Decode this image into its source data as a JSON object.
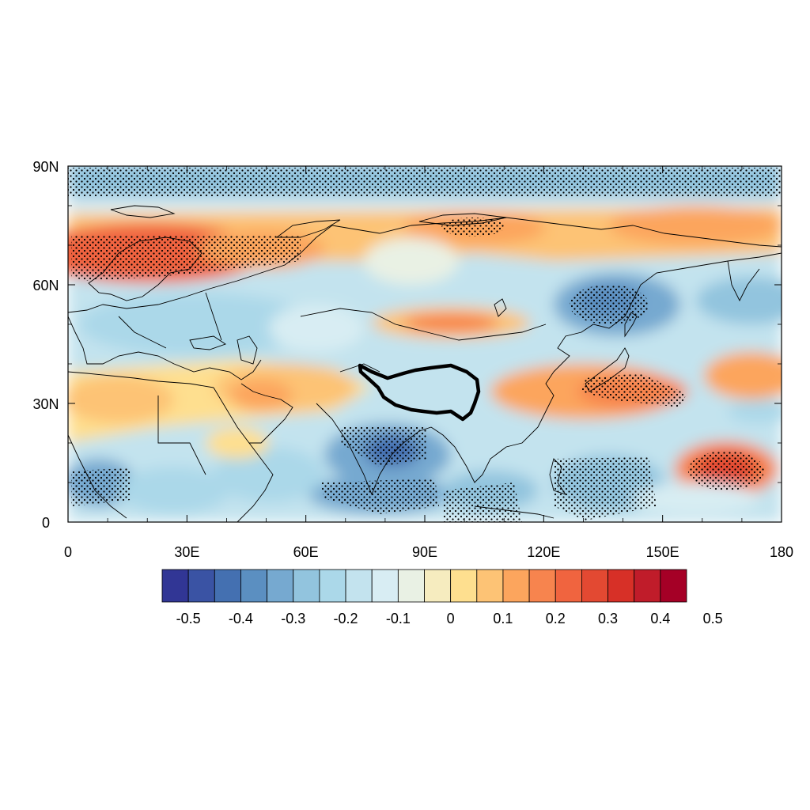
{
  "map": {
    "lon_range": [
      0,
      180
    ],
    "lat_range": [
      0,
      90
    ],
    "x_ticks": [
      "0",
      "30E",
      "60E",
      "90E",
      "120E",
      "150E",
      "180"
    ],
    "x_tick_values": [
      0,
      30,
      60,
      90,
      120,
      150,
      180
    ],
    "y_ticks": [
      "0",
      "30N",
      "60N",
      "90N"
    ],
    "y_tick_values": [
      0,
      30,
      60,
      90
    ],
    "outline_region": "tibetan-plateau",
    "stippling": "significance dots",
    "field_anomalies": [
      {
        "lon": 15,
        "lat": 66,
        "value": 0.35
      },
      {
        "lon": 50,
        "lat": 67,
        "value": 0.25
      },
      {
        "lon": 105,
        "lat": 75,
        "value": 0.2
      },
      {
        "lon": 165,
        "lat": 75,
        "value": 0.2
      },
      {
        "lon": 95,
        "lat": 50,
        "value": 0.2
      },
      {
        "lon": 45,
        "lat": 32,
        "value": 0.15
      },
      {
        "lon": 10,
        "lat": 27,
        "value": 0.1
      },
      {
        "lon": 145,
        "lat": 33,
        "value": 0.25
      },
      {
        "lon": 167,
        "lat": 13,
        "value": 0.4
      },
      {
        "lon": 175,
        "lat": 38,
        "value": 0.15
      },
      {
        "lon": 140,
        "lat": 55,
        "value": -0.15
      },
      {
        "lon": 80,
        "lat": 18,
        "value": -0.25
      },
      {
        "lon": 85,
        "lat": 8,
        "value": -0.2
      },
      {
        "lon": 140,
        "lat": 10,
        "value": -0.15
      },
      {
        "lon": 95,
        "lat": 87,
        "value": -0.15
      },
      {
        "lon": 25,
        "lat": 50,
        "value": -0.1
      },
      {
        "lon": 8,
        "lat": 10,
        "value": -0.15
      },
      {
        "lon": 60,
        "lat": 10,
        "value": -0.1
      }
    ]
  },
  "colorbar": {
    "labels": [
      "-0.5",
      "-0.4",
      "-0.3",
      "-0.2",
      "-0.1",
      "0",
      "0.1",
      "0.2",
      "0.3",
      "0.4",
      "0.5"
    ],
    "colors": [
      "#313695",
      "#3a53a4",
      "#4470b1",
      "#5b8fc1",
      "#76a9d0",
      "#92c4de",
      "#abd8e9",
      "#c3e3ee",
      "#d8edf3",
      "#e9f1e4",
      "#f6ecbf",
      "#fedf8f",
      "#fdc375",
      "#fca55d",
      "#f7844e",
      "#f0643f",
      "#e34932",
      "#d73027",
      "#c01c2a",
      "#a50026"
    ]
  }
}
